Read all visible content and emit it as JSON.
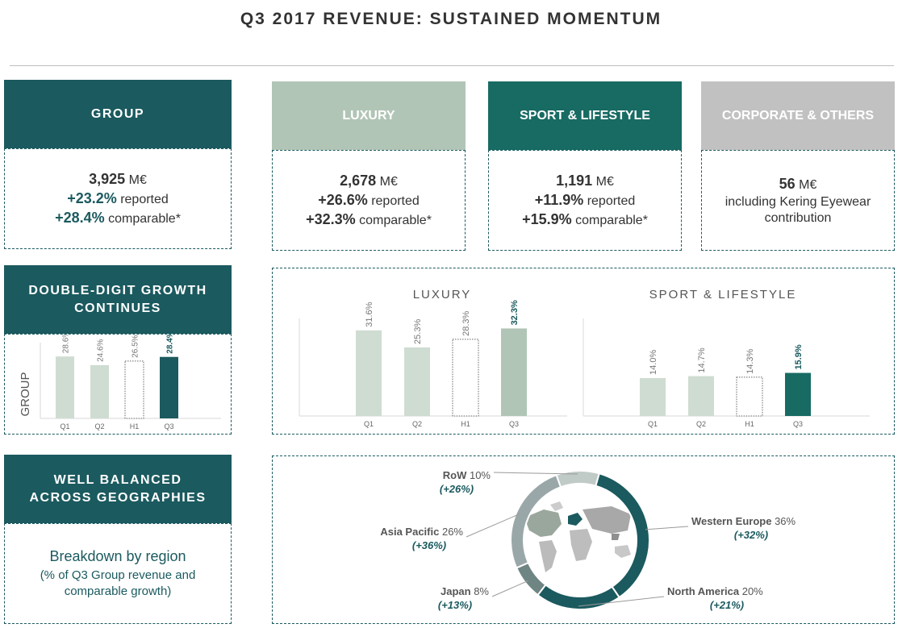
{
  "title": "Q3 2017 REVENUE: SUSTAINED MOMENTUM",
  "colors": {
    "dark": "#1b5a5f",
    "teal": "#176b63",
    "sage": "#b1c5b6",
    "light": "#cfdcd2",
    "grey": "#c1c1c1"
  },
  "group": {
    "header": "GROUP",
    "value": "3,925",
    "unit": " M€",
    "reported_pct": "+23.2%",
    "reported_label": " reported",
    "comparable_pct": "+28.4%",
    "comparable_label": " comparable*"
  },
  "luxury": {
    "header": "LUXURY",
    "value": "2,678",
    "unit": " M€",
    "reported_pct": "+26.6%",
    "reported_label": " reported",
    "comparable_pct": "+32.3%",
    "comparable_label": " comparable*"
  },
  "sport": {
    "header": "SPORT & LIFESTYLE",
    "value": "1,191",
    "unit": " M€",
    "reported_pct": "+11.9%",
    "reported_label": " reported",
    "comparable_pct": "+15.9%",
    "comparable_label": " comparable*"
  },
  "corporate": {
    "header": "CORPORATE & OTHERS",
    "value": "56",
    "unit": " M€",
    "note_line1": "including Kering Eyewear",
    "note_line2": "contribution"
  },
  "growth": {
    "header_line1": "DOUBLE-DIGIT GROWTH",
    "header_line2": "CONTINUES"
  },
  "geo": {
    "header_line1": "WELL BALANCED",
    "header_line2": "ACROSS GEOGRAPHIES",
    "text_line1": "Breakdown by region",
    "text_line2": "(% of Q3 Group revenue and",
    "text_line3": "comparable growth)"
  },
  "chart_data": [
    {
      "type": "bar",
      "title": "",
      "ylabel": "GROUP",
      "categories": [
        "Q1",
        "Q2",
        "H1",
        "Q3"
      ],
      "values": [
        28.6,
        24.6,
        26.5,
        28.4
      ],
      "labels": [
        "28.6%",
        "24.6%",
        "26.5%",
        "28.4%"
      ],
      "ylim": [
        0,
        35
      ]
    },
    {
      "type": "bar",
      "title": "LUXURY",
      "categories": [
        "Q1",
        "Q2",
        "H1",
        "Q3"
      ],
      "values": [
        31.6,
        25.3,
        28.3,
        32.3
      ],
      "labels": [
        "31.6%",
        "25.3%",
        "28.3%",
        "32.3%"
      ],
      "ylim": [
        0,
        36
      ]
    },
    {
      "type": "bar",
      "title": "SPORT & LIFESTYLE",
      "categories": [
        "Q1",
        "Q2",
        "H1",
        "Q3"
      ],
      "values": [
        14.0,
        14.7,
        14.3,
        15.9
      ],
      "labels": [
        "14.0%",
        "14.7%",
        "14.3%",
        "15.9%"
      ],
      "ylim": [
        0,
        36
      ]
    },
    {
      "type": "pie",
      "title": "Breakdown by region",
      "categories": [
        "Western Europe",
        "North America",
        "Japan",
        "Asia Pacific",
        "RoW"
      ],
      "values": [
        36,
        20,
        8,
        26,
        10
      ],
      "shares": [
        "36%",
        "20%",
        "8%",
        "26%",
        "10%"
      ],
      "growth": [
        "(+32%)",
        "(+21%)",
        "(+13%)",
        "(+36%)",
        "(+26%)"
      ]
    }
  ]
}
